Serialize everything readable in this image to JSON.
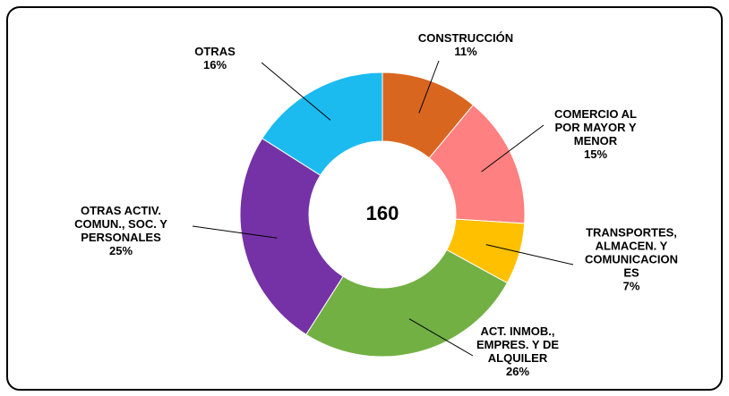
{
  "chart_data": {
    "type": "donut",
    "center_label": "160",
    "categories": [
      "CONSTRUCCIÓN",
      "COMERCIO AL\nPOR MAYOR Y\nMENOR",
      "TRANSPORTES,\nALMACEN. Y\nCOMUNICACION\nES",
      "ACT. INMOB.,\nEMPRES. Y DE\nALQUILER",
      "OTRAS ACTIV.\nCOMUN., SOC. Y\nPERSONALES",
      "OTRAS"
    ],
    "values": [
      11,
      15,
      7,
      26,
      25,
      16
    ],
    "value_labels": [
      "11%",
      "15%",
      "7%",
      "26%",
      "25%",
      "16%"
    ],
    "colors": [
      "#d9661f",
      "#ff8080",
      "#ffc000",
      "#72b043",
      "#7532a6",
      "#1bbbf0"
    ]
  }
}
